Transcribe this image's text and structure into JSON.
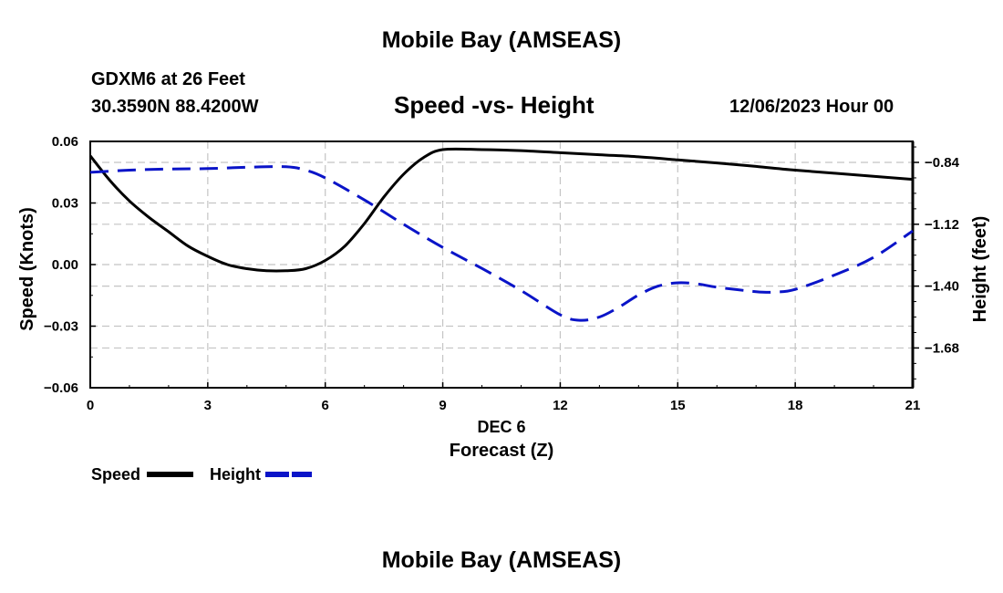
{
  "header": {
    "title_top": "Mobile Bay (AMSEAS)",
    "title_bottom": "Mobile Bay (AMSEAS)",
    "station": "GDXM6 at 26 Feet",
    "coords": "30.3590N  88.4200W",
    "subtitle": "Speed -vs- Height",
    "datetime": "12/06/2023 Hour 00"
  },
  "chart_data": {
    "type": "line",
    "title": "Speed -vs- Height",
    "xlabel_date": "DEC 6",
    "xlabel": "Forecast (Z)",
    "ylabel": "Speed (Knots)",
    "y2label": "Height (feet)",
    "xlim": [
      0,
      21
    ],
    "ylim": [
      -0.06,
      0.06
    ],
    "y2lim": [
      -1.86,
      -0.745
    ],
    "x_ticks": [
      0,
      3,
      6,
      9,
      12,
      15,
      18,
      21
    ],
    "x_tick_labels": [
      "0",
      "3",
      "6",
      "9",
      "12",
      "15",
      "18",
      "21"
    ],
    "y_ticks": [
      0.06,
      0.03,
      0.0,
      -0.03,
      -0.06
    ],
    "y_tick_labels": [
      "0.06",
      "0.03",
      "0.00",
      "−0.03",
      "−0.06"
    ],
    "y2_ticks": [
      -0.84,
      -1.12,
      -1.4,
      -1.68
    ],
    "y2_tick_labels": [
      "−0.84",
      "−1.12",
      "−1.40",
      "−1.68"
    ],
    "grid": true,
    "series": [
      {
        "name": "Speed",
        "axis": "left",
        "color": "#000000",
        "style": "solid",
        "x": [
          0,
          0.5,
          1,
          1.5,
          2,
          2.5,
          3,
          3.5,
          4,
          4.5,
          5,
          5.5,
          6,
          6.5,
          7,
          7.5,
          8,
          8.5,
          9,
          10,
          11,
          12,
          13,
          14,
          15,
          16,
          17,
          18,
          19,
          20,
          21
        ],
        "values": [
          0.053,
          0.041,
          0.031,
          0.023,
          0.016,
          0.009,
          0.004,
          0.0,
          -0.002,
          -0.003,
          -0.003,
          -0.002,
          0.002,
          0.009,
          0.02,
          0.033,
          0.044,
          0.052,
          0.056,
          0.056,
          0.0555,
          0.0545,
          0.0535,
          0.0525,
          0.051,
          0.0495,
          0.0478,
          0.046,
          0.0445,
          0.043,
          0.0415
        ]
      },
      {
        "name": "Height",
        "axis": "right",
        "color": "#0a14c8",
        "style": "dashed",
        "x": [
          0,
          1,
          2,
          3,
          4,
          5,
          5.5,
          6,
          7,
          8,
          9,
          10,
          11,
          12,
          12.5,
          13,
          13.5,
          14,
          14.5,
          15,
          15.5,
          16,
          17,
          17.5,
          18,
          19,
          20,
          21
        ],
        "values": [
          -0.885,
          -0.875,
          -0.87,
          -0.868,
          -0.862,
          -0.86,
          -0.875,
          -0.91,
          -1.01,
          -1.12,
          -1.225,
          -1.32,
          -1.42,
          -1.53,
          -1.555,
          -1.54,
          -1.495,
          -1.44,
          -1.4,
          -1.385,
          -1.39,
          -1.405,
          -1.425,
          -1.427,
          -1.415,
          -1.35,
          -1.27,
          -1.15
        ]
      }
    ],
    "legend": {
      "position": "bottom-left",
      "entries": [
        "Speed",
        "Height"
      ]
    }
  }
}
